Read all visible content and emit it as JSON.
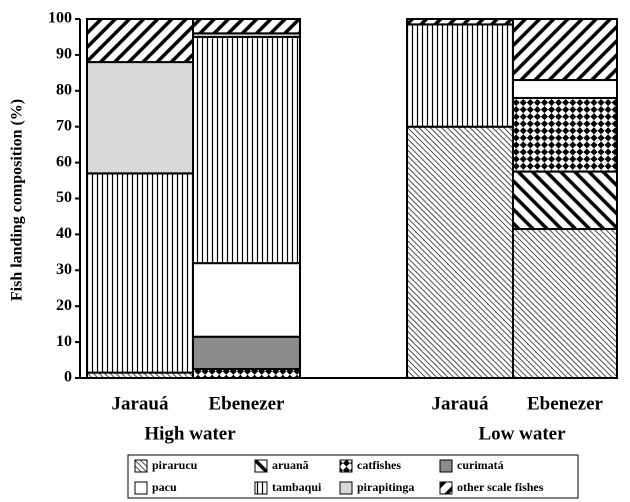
{
  "chart_data": {
    "type": "stacked-bar",
    "ylabel": "Fish landing composition (%)",
    "categories": [
      "Jarauá",
      "Ebenezer",
      "Jarauá",
      "Ebenezer"
    ],
    "groups": [
      "High water",
      "Low water"
    ],
    "ylim": [
      0,
      100
    ],
    "yticks": [
      0,
      10,
      20,
      30,
      40,
      50,
      60,
      70,
      80,
      90,
      100
    ],
    "series": [
      {
        "name": "pirarucu",
        "color": "#000000",
        "pattern": "back-hatch",
        "values": [
          1.5,
          0,
          70,
          41.5
        ]
      },
      {
        "name": "aruanã",
        "color": "#000000",
        "pattern": "back-hatch-bold",
        "values": [
          0,
          0,
          0,
          16
        ]
      },
      {
        "name": "catfishes",
        "color": "#000000",
        "pattern": "checker",
        "values": [
          0,
          2.5,
          0,
          20.5
        ]
      },
      {
        "name": "curimatá",
        "color": "#8c8c8c",
        "pattern": "solid",
        "values": [
          0,
          9,
          0,
          0
        ]
      },
      {
        "name": "pacu",
        "color": "#ffffff",
        "pattern": "solid",
        "values": [
          0,
          20.5,
          0,
          5
        ]
      },
      {
        "name": "tambaqui",
        "color": "#000000",
        "pattern": "vertical",
        "values": [
          55.5,
          63,
          28.5,
          0
        ]
      },
      {
        "name": "pirapitinga",
        "color": "#d9d9d9",
        "pattern": "solid",
        "values": [
          31,
          1,
          0,
          0
        ]
      },
      {
        "name": "other scale fishes",
        "color": "#000000",
        "pattern": "fwd-hatch-bold",
        "values": [
          12,
          4,
          1.5,
          17
        ]
      }
    ]
  }
}
